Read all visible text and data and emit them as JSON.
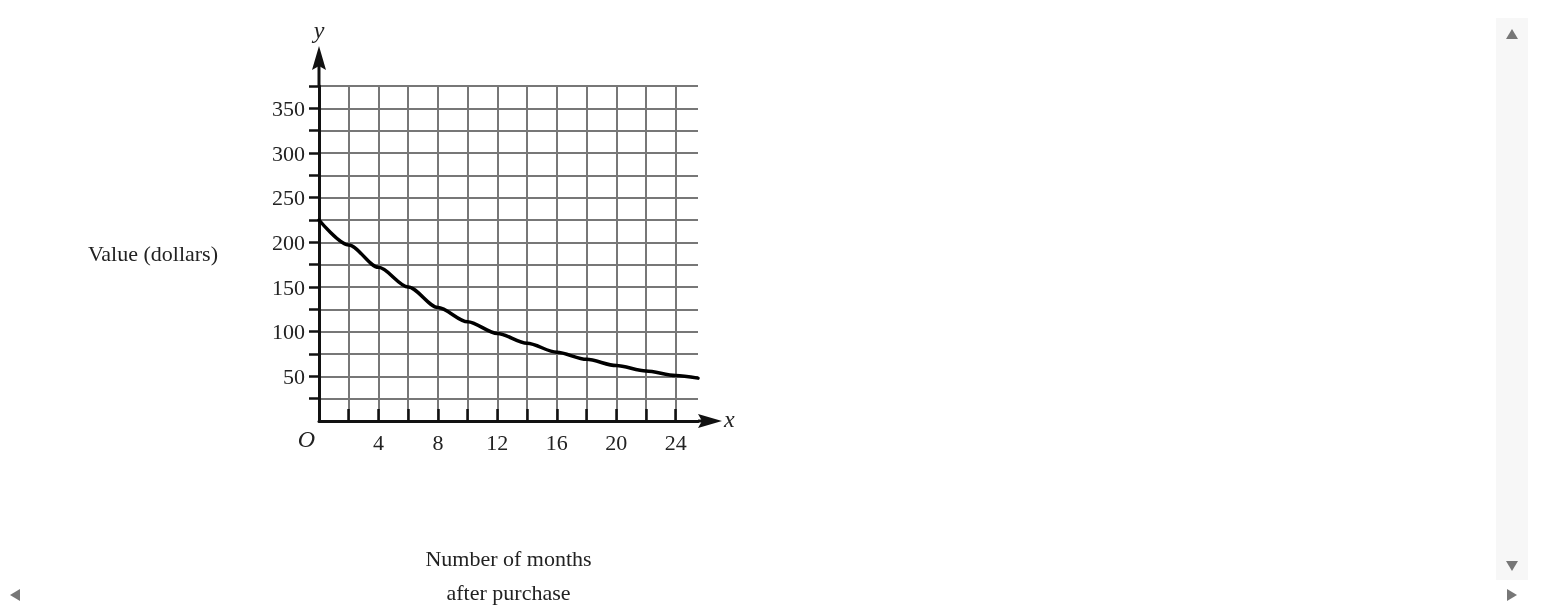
{
  "chart_data": {
    "type": "line",
    "xlabel": "Number of months\nafter purchase",
    "ylabel": "Value (dollars)",
    "annotations": [
      "O",
      "x",
      "y"
    ],
    "x": [
      0,
      2,
      4,
      6,
      8,
      10,
      12,
      14,
      16,
      18,
      20,
      22,
      24,
      25.5
    ],
    "series": [
      {
        "color": "#000000",
        "values": [
          225,
          197,
          172,
          150,
          127,
          111,
          98,
          87,
          77,
          69,
          62,
          56,
          51,
          48
        ]
      }
    ],
    "xlim": [
      0,
      25.5
    ],
    "xticks": [
      {
        "value": 2,
        "label": null
      },
      4,
      {
        "value": 6,
        "label": null
      },
      8,
      {
        "value": 10,
        "label": null
      },
      12,
      {
        "value": 14,
        "label": null
      },
      16,
      {
        "value": 18,
        "label": null
      },
      20,
      {
        "value": 22,
        "label": null
      },
      24
    ],
    "ylim": [
      0,
      375
    ],
    "yticks": [
      {
        "value": 25,
        "label": null
      },
      50,
      {
        "value": 75,
        "label": null
      },
      100,
      {
        "value": 125,
        "label": null
      },
      150,
      {
        "value": 175,
        "label": null
      },
      200,
      {
        "value": 225,
        "label": null
      },
      250,
      {
        "value": 275,
        "label": null
      },
      300,
      {
        "value": 325,
        "label": null
      },
      350,
      {
        "value": 375,
        "label": null
      }
    ],
    "grid": true,
    "marker": "none",
    "line_style": "solid"
  }
}
